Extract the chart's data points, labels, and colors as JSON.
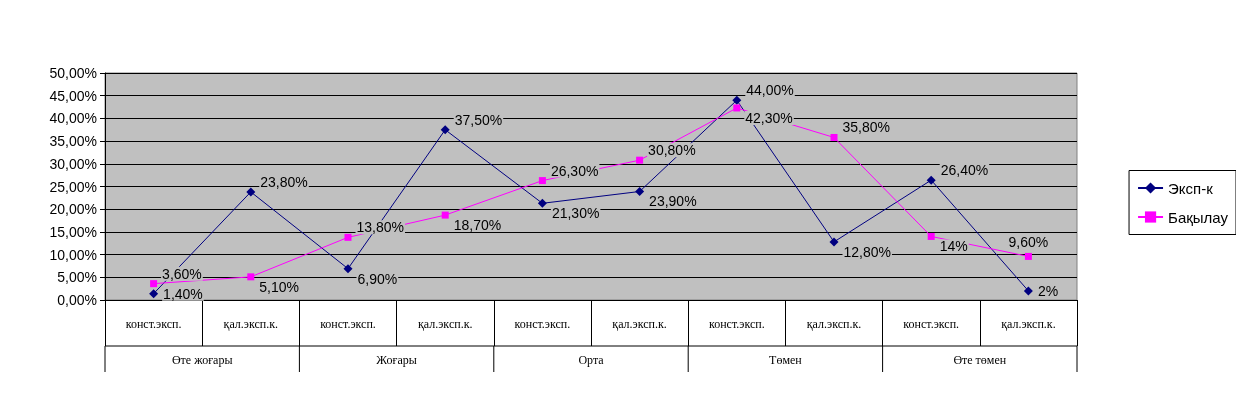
{
  "chart_data": {
    "type": "line",
    "categories": [
      "конст.эксп.",
      "қал.эксп.к.",
      "конст.эксп.",
      "қал.эксп.к.",
      "конст.эксп.",
      "қал.эксп.к.",
      "конст.эксп.",
      "қал.эксп.к.",
      "конст.эксп.",
      "қал.эксп.к."
    ],
    "annotations": [
      "Өте жоғары",
      "Жоғары",
      "Орта",
      "Төмен",
      "Өте төмен"
    ],
    "series": [
      {
        "name": "Эксп-к",
        "color": "#000080",
        "marker": "diamond",
        "values": [
          1.4,
          23.8,
          6.9,
          37.5,
          21.3,
          23.9,
          44.0,
          12.8,
          26.4,
          2
        ],
        "value_labels": [
          "1,40%",
          "23,80%",
          "6,90%",
          "37,50%",
          "21,30%",
          "23,90%",
          "44,00%",
          "12,80%",
          "26,40%",
          "2%"
        ]
      },
      {
        "name": "Бақылау",
        "color": "#ff00ff",
        "marker": "square",
        "values": [
          3.6,
          5.1,
          13.8,
          18.7,
          26.3,
          30.8,
          42.3,
          35.8,
          14,
          9.6
        ],
        "value_labels": [
          "3,60%",
          "5,10%",
          "13,80%",
          "18,70%",
          "26,30%",
          "30,80%",
          "42,30%",
          "35,80%",
          "14%",
          "9,60%"
        ]
      }
    ],
    "ylim": [
      0,
      50
    ],
    "yticks": [
      {
        "value": 0,
        "label": "0,00%"
      },
      {
        "value": 5,
        "label": "5,00%"
      },
      {
        "value": 10,
        "label": "10,00%"
      },
      {
        "value": 15,
        "label": "15,00%"
      },
      {
        "value": 20,
        "label": "20,00%"
      },
      {
        "value": 25,
        "label": "25,00%"
      },
      {
        "value": 30,
        "label": "30,00%"
      },
      {
        "value": 35,
        "label": "35,00%"
      },
      {
        "value": 40,
        "label": "40,00%"
      },
      {
        "value": 45,
        "label": "45,00%"
      },
      {
        "value": 50,
        "label": "50,00%"
      }
    ],
    "grid": "y",
    "legend": "right",
    "line_style": "solid"
  }
}
